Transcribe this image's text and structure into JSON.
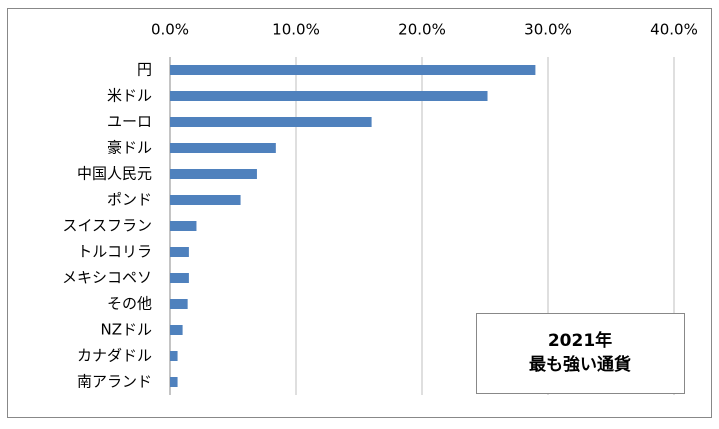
{
  "chart_data": {
    "type": "bar",
    "orientation": "horizontal",
    "categories": [
      "円",
      "米ドル",
      "ユーロ",
      "豪ドル",
      "中国人民元",
      "ポンド",
      "スイスフラン",
      "トルコリラ",
      "メキシコペソ",
      "その他",
      "NZドル",
      "カナダドル",
      "南アランド"
    ],
    "values": [
      29.0,
      25.2,
      16.0,
      8.4,
      6.9,
      5.6,
      2.1,
      1.5,
      1.5,
      1.4,
      1.0,
      0.6,
      0.6
    ],
    "color": "#4f81bd",
    "xlim": [
      0,
      40
    ],
    "xticks": [
      {
        "value": 0,
        "label": "0.0%"
      },
      {
        "value": 10,
        "label": "10.0%"
      },
      {
        "value": 20,
        "label": "20.0%"
      },
      {
        "value": 30,
        "label": "30.0%"
      },
      {
        "value": 40,
        "label": "40.0%"
      }
    ],
    "grid": true,
    "annotation": [
      "2021年",
      "最も強い通貨"
    ]
  }
}
